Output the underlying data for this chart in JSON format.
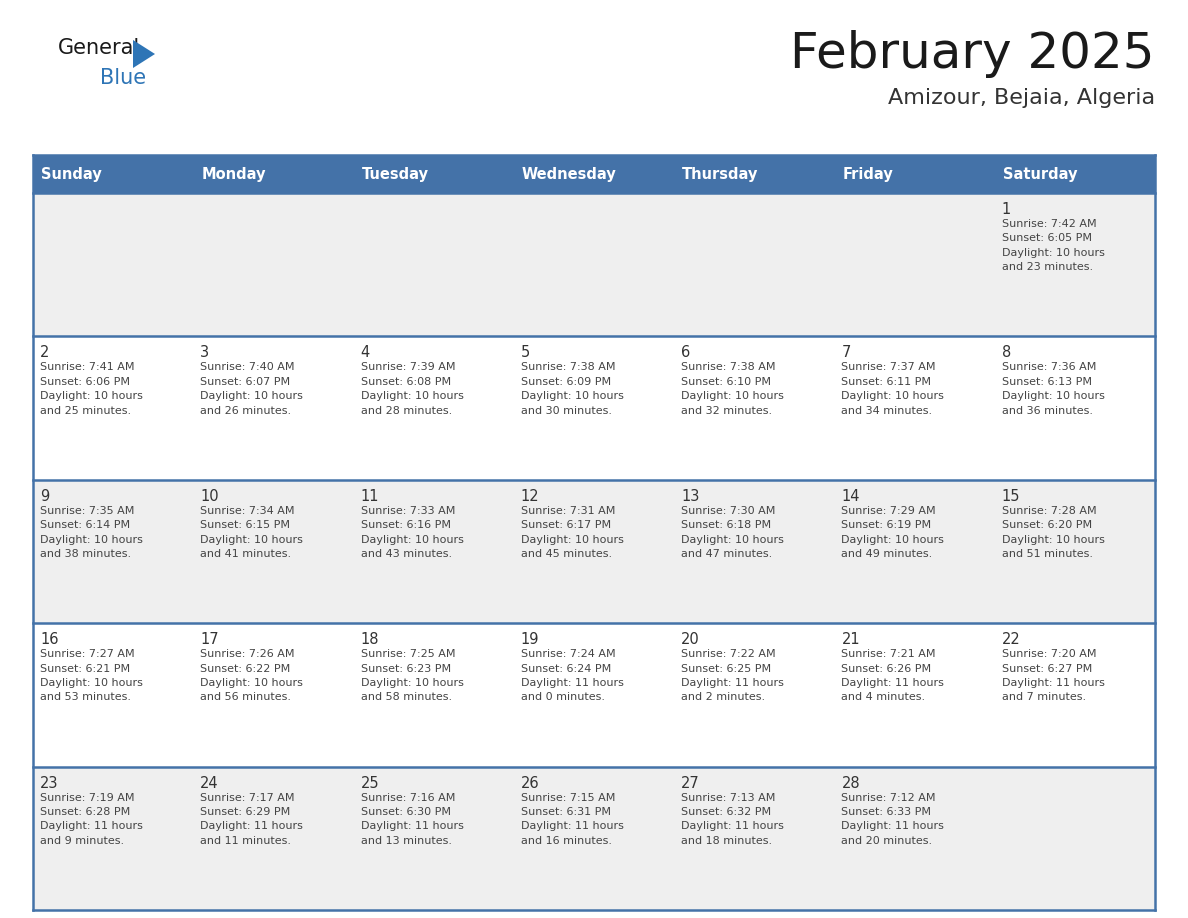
{
  "title": "February 2025",
  "subtitle": "Amizour, Bejaia, Algeria",
  "days_of_week": [
    "Sunday",
    "Monday",
    "Tuesday",
    "Wednesday",
    "Thursday",
    "Friday",
    "Saturday"
  ],
  "header_bg_color": "#4472A8",
  "header_text_color": "#FFFFFF",
  "cell_bg_color_odd": "#EFEFEF",
  "cell_bg_color_even": "#FFFFFF",
  "border_color": "#4472A8",
  "day_number_color": "#333333",
  "text_color": "#444444",
  "title_color": "#1a1a1a",
  "subtitle_color": "#333333",
  "logo_general_color": "#1a1a1a",
  "logo_blue_color": "#2E75B6",
  "logo_triangle_color": "#2E75B6",
  "weeks": [
    [
      {
        "day": null,
        "info": null
      },
      {
        "day": null,
        "info": null
      },
      {
        "day": null,
        "info": null
      },
      {
        "day": null,
        "info": null
      },
      {
        "day": null,
        "info": null
      },
      {
        "day": null,
        "info": null
      },
      {
        "day": 1,
        "info": "Sunrise: 7:42 AM\nSunset: 6:05 PM\nDaylight: 10 hours\nand 23 minutes."
      }
    ],
    [
      {
        "day": 2,
        "info": "Sunrise: 7:41 AM\nSunset: 6:06 PM\nDaylight: 10 hours\nand 25 minutes."
      },
      {
        "day": 3,
        "info": "Sunrise: 7:40 AM\nSunset: 6:07 PM\nDaylight: 10 hours\nand 26 minutes."
      },
      {
        "day": 4,
        "info": "Sunrise: 7:39 AM\nSunset: 6:08 PM\nDaylight: 10 hours\nand 28 minutes."
      },
      {
        "day": 5,
        "info": "Sunrise: 7:38 AM\nSunset: 6:09 PM\nDaylight: 10 hours\nand 30 minutes."
      },
      {
        "day": 6,
        "info": "Sunrise: 7:38 AM\nSunset: 6:10 PM\nDaylight: 10 hours\nand 32 minutes."
      },
      {
        "day": 7,
        "info": "Sunrise: 7:37 AM\nSunset: 6:11 PM\nDaylight: 10 hours\nand 34 minutes."
      },
      {
        "day": 8,
        "info": "Sunrise: 7:36 AM\nSunset: 6:13 PM\nDaylight: 10 hours\nand 36 minutes."
      }
    ],
    [
      {
        "day": 9,
        "info": "Sunrise: 7:35 AM\nSunset: 6:14 PM\nDaylight: 10 hours\nand 38 minutes."
      },
      {
        "day": 10,
        "info": "Sunrise: 7:34 AM\nSunset: 6:15 PM\nDaylight: 10 hours\nand 41 minutes."
      },
      {
        "day": 11,
        "info": "Sunrise: 7:33 AM\nSunset: 6:16 PM\nDaylight: 10 hours\nand 43 minutes."
      },
      {
        "day": 12,
        "info": "Sunrise: 7:31 AM\nSunset: 6:17 PM\nDaylight: 10 hours\nand 45 minutes."
      },
      {
        "day": 13,
        "info": "Sunrise: 7:30 AM\nSunset: 6:18 PM\nDaylight: 10 hours\nand 47 minutes."
      },
      {
        "day": 14,
        "info": "Sunrise: 7:29 AM\nSunset: 6:19 PM\nDaylight: 10 hours\nand 49 minutes."
      },
      {
        "day": 15,
        "info": "Sunrise: 7:28 AM\nSunset: 6:20 PM\nDaylight: 10 hours\nand 51 minutes."
      }
    ],
    [
      {
        "day": 16,
        "info": "Sunrise: 7:27 AM\nSunset: 6:21 PM\nDaylight: 10 hours\nand 53 minutes."
      },
      {
        "day": 17,
        "info": "Sunrise: 7:26 AM\nSunset: 6:22 PM\nDaylight: 10 hours\nand 56 minutes."
      },
      {
        "day": 18,
        "info": "Sunrise: 7:25 AM\nSunset: 6:23 PM\nDaylight: 10 hours\nand 58 minutes."
      },
      {
        "day": 19,
        "info": "Sunrise: 7:24 AM\nSunset: 6:24 PM\nDaylight: 11 hours\nand 0 minutes."
      },
      {
        "day": 20,
        "info": "Sunrise: 7:22 AM\nSunset: 6:25 PM\nDaylight: 11 hours\nand 2 minutes."
      },
      {
        "day": 21,
        "info": "Sunrise: 7:21 AM\nSunset: 6:26 PM\nDaylight: 11 hours\nand 4 minutes."
      },
      {
        "day": 22,
        "info": "Sunrise: 7:20 AM\nSunset: 6:27 PM\nDaylight: 11 hours\nand 7 minutes."
      }
    ],
    [
      {
        "day": 23,
        "info": "Sunrise: 7:19 AM\nSunset: 6:28 PM\nDaylight: 11 hours\nand 9 minutes."
      },
      {
        "day": 24,
        "info": "Sunrise: 7:17 AM\nSunset: 6:29 PM\nDaylight: 11 hours\nand 11 minutes."
      },
      {
        "day": 25,
        "info": "Sunrise: 7:16 AM\nSunset: 6:30 PM\nDaylight: 11 hours\nand 13 minutes."
      },
      {
        "day": 26,
        "info": "Sunrise: 7:15 AM\nSunset: 6:31 PM\nDaylight: 11 hours\nand 16 minutes."
      },
      {
        "day": 27,
        "info": "Sunrise: 7:13 AM\nSunset: 6:32 PM\nDaylight: 11 hours\nand 18 minutes."
      },
      {
        "day": 28,
        "info": "Sunrise: 7:12 AM\nSunset: 6:33 PM\nDaylight: 11 hours\nand 20 minutes."
      },
      {
        "day": null,
        "info": null
      }
    ]
  ]
}
